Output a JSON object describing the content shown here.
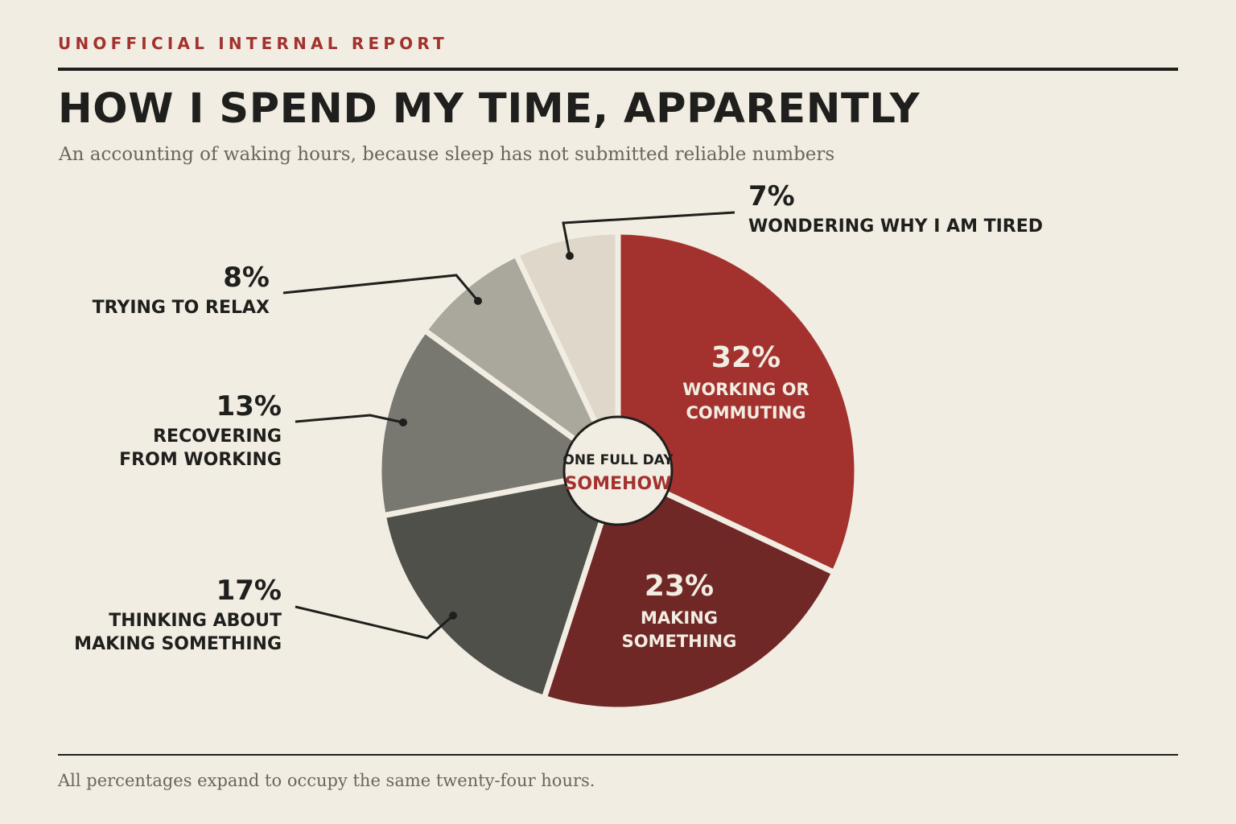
{
  "header": {
    "kicker": "UNOFFICIAL INTERNAL REPORT",
    "title": "HOW I SPEND MY TIME, APPARENTLY",
    "subtitle": "An accounting of waking hours, because sleep has not submitted reliable numbers"
  },
  "footer": {
    "note": "All percentages expand to occupy the same twenty-four hours."
  },
  "center_label": {
    "top": "ONE FULL DAY",
    "bottom": "SOMEHOW"
  },
  "colors": {
    "background": "#F2EDE2",
    "ink": "#1F1F1D",
    "accent": "#A3322F",
    "muted": "#6B655D",
    "inside_text": "#F2EDE2"
  },
  "chart_data": {
    "type": "pie",
    "title": "HOW I SPEND MY TIME, APPARENTLY",
    "subtitle": "An accounting of waking hours, because sleep has not submitted reliable numbers",
    "legend": "none",
    "slices": [
      {
        "label": "WORKING OR COMMUTING",
        "lines": [
          "WORKING OR",
          "COMMUTING"
        ],
        "value": 32,
        "display": "32%",
        "color": "#A3322F",
        "label_placement": "inside"
      },
      {
        "label": "MAKING SOMETHING",
        "lines": [
          "MAKING",
          "SOMETHING"
        ],
        "value": 23,
        "display": "23%",
        "color": "#702827",
        "label_placement": "inside"
      },
      {
        "label": "THINKING ABOUT MAKING SOMETHING",
        "lines": [
          "THINKING ABOUT",
          "MAKING SOMETHING"
        ],
        "value": 17,
        "display": "17%",
        "color": "#4F504A",
        "label_placement": "outside"
      },
      {
        "label": "RECOVERING FROM WORKING",
        "lines": [
          "RECOVERING",
          "FROM WORKING"
        ],
        "value": 13,
        "display": "13%",
        "color": "#787770",
        "label_placement": "outside"
      },
      {
        "label": "TRYING TO RELAX",
        "lines": [
          "TRYING TO RELAX"
        ],
        "value": 8,
        "display": "8%",
        "color": "#AAA79C",
        "label_placement": "outside"
      },
      {
        "label": "WONDERING WHY I AM TIRED",
        "lines": [
          "WONDERING WHY I AM TIRED"
        ],
        "value": 7,
        "display": "7%",
        "color": "#DFD8CA",
        "label_placement": "outside"
      }
    ]
  }
}
